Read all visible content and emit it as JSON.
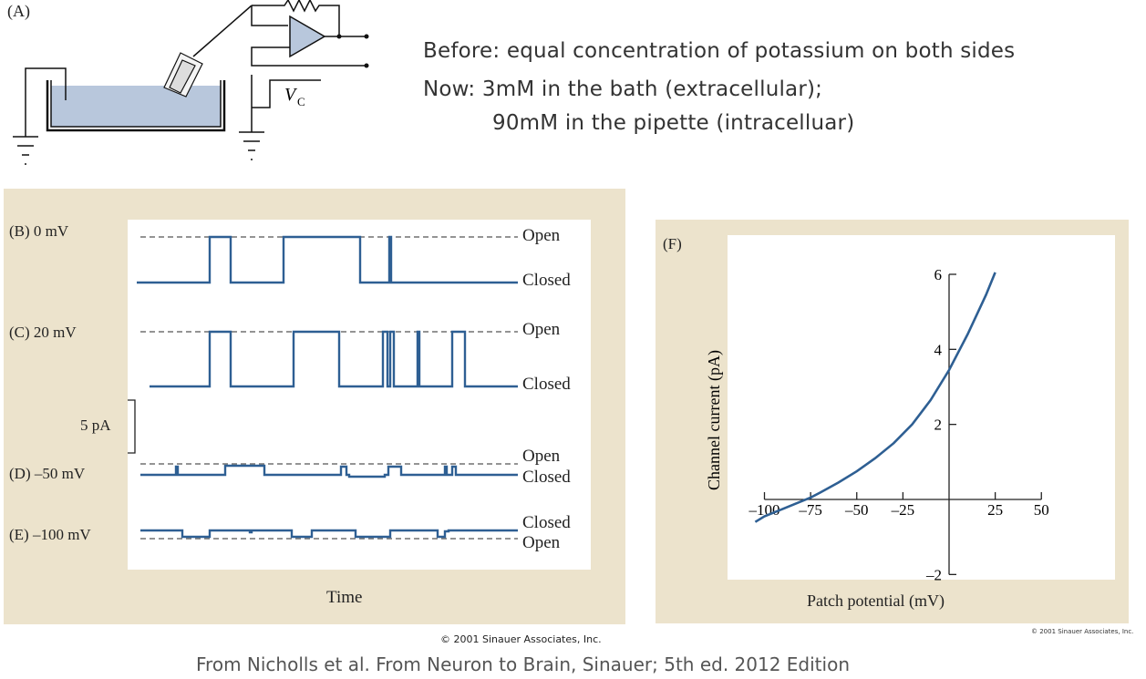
{
  "panel_a": {
    "label": "(A)",
    "vc_label": "V",
    "vc_sub": "C"
  },
  "notes": {
    "line1": "Before: equal concentration of potassium on both sides",
    "line2": "Now: 3mM in the bath (extracellular);",
    "line3": "90mM in the pipette (intracelluar)"
  },
  "traces_panel": {
    "rows": [
      {
        "label": "(B)  0 mV",
        "top_state": "Open",
        "bottom_state": "Closed"
      },
      {
        "label": "(C)  20 mV",
        "top_state": "Open",
        "bottom_state": "Closed"
      },
      {
        "label": "(D)  –50 mV",
        "top_state": "Open",
        "bottom_state": "Closed"
      },
      {
        "label": "(E)  –100 mV",
        "top_state": "Closed",
        "bottom_state": "Open"
      }
    ],
    "scale_bar": "5 pA",
    "xlabel": "Time",
    "copyright": "© 2001 Sinauer Associates, Inc."
  },
  "chart_data": {
    "type": "line",
    "panel_label": "(F)",
    "xlabel": "Patch potential (mV)",
    "ylabel": "Channel current (pA)",
    "xlim": [
      -100,
      50
    ],
    "ylim": [
      -2,
      6
    ],
    "x_ticks": [
      -100,
      -75,
      -50,
      -25,
      25,
      50
    ],
    "x_tick_labels": [
      "–100",
      "–75",
      "–50",
      "–25",
      "25",
      "50"
    ],
    "y_ticks": [
      -2,
      2,
      4,
      6
    ],
    "y_tick_labels": [
      "–2",
      "2",
      "4",
      "6"
    ],
    "series": [
      {
        "x": [
          -105,
          -100,
          -90,
          -80,
          -75,
          -70,
          -60,
          -50,
          -40,
          -30,
          -20,
          -10,
          0,
          10,
          20,
          25
        ],
        "y": [
          -0.6,
          -0.45,
          -0.25,
          -0.05,
          0.05,
          0.18,
          0.45,
          0.75,
          1.1,
          1.5,
          2.0,
          2.65,
          3.45,
          4.4,
          5.45,
          6.05
        ]
      }
    ],
    "copyright": "© 2001 Sinauer Associates, Inc."
  },
  "citation": "From Nicholls et al. From Neuron to Brain, Sinauer; 5th ed. 2012 Edition"
}
